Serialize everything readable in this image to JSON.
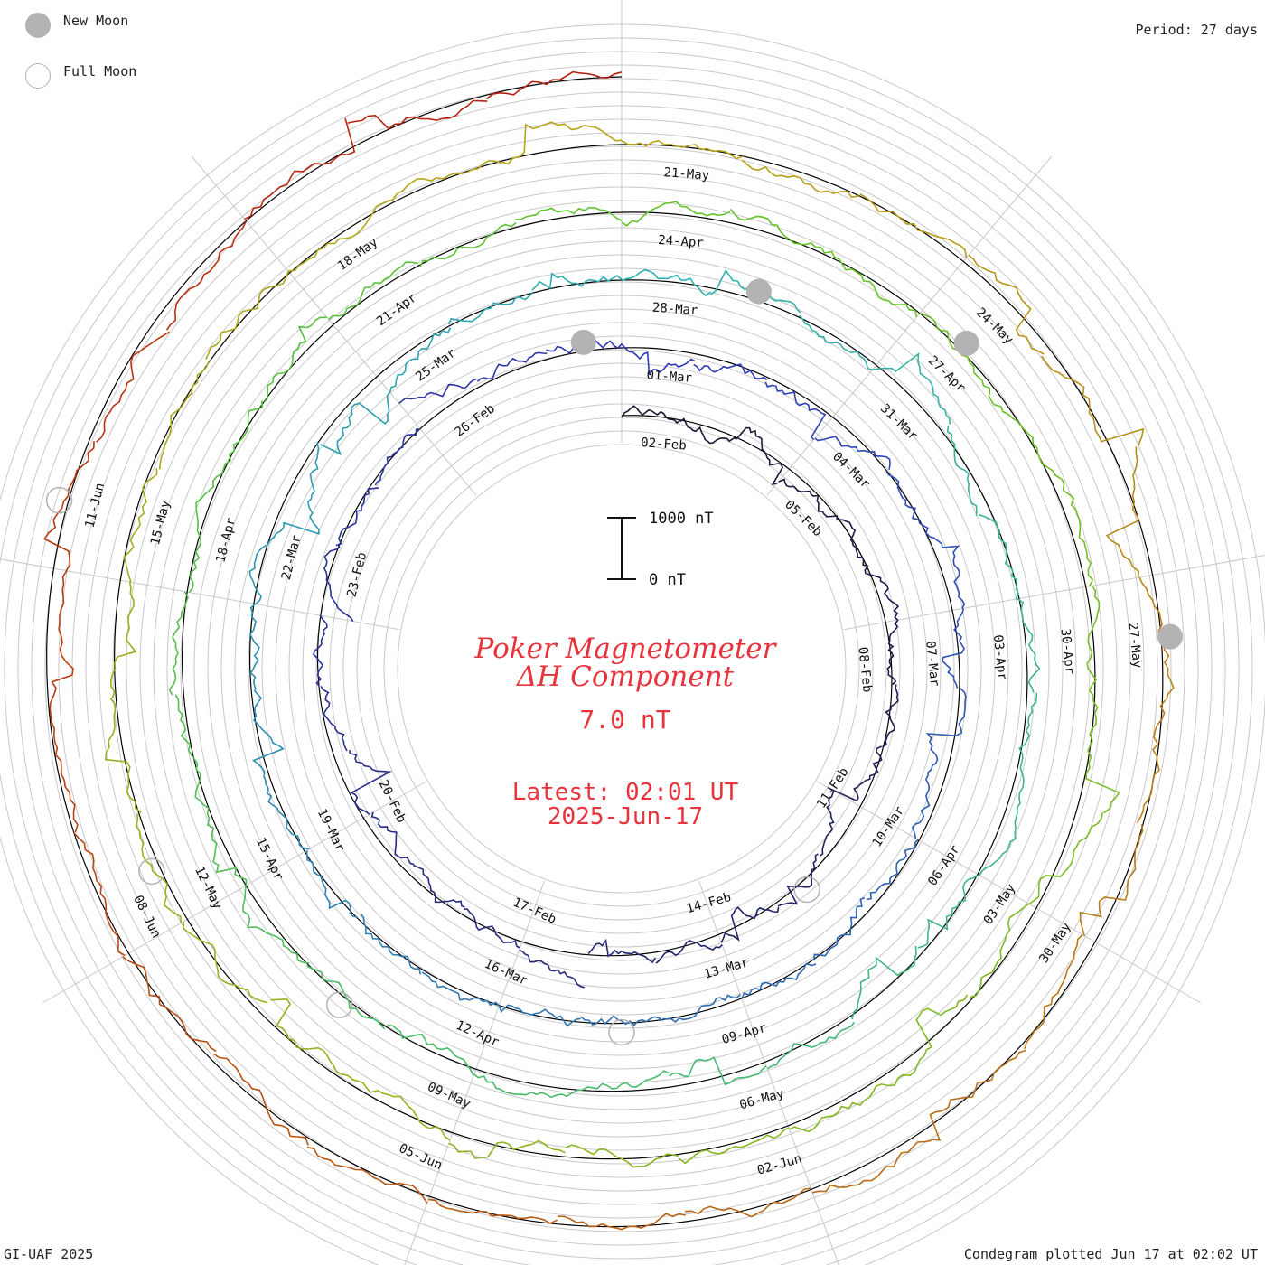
{
  "legend": {
    "new_moon_label": "New Moon",
    "full_moon_label": "Full Moon",
    "new_moon_color": "#b3b3b3",
    "full_moon_color": "#b3b3b3"
  },
  "period_label": "Period: 27 days",
  "footer": {
    "left": "GI-UAF 2025",
    "right": "Condegram plotted Jun 17 at 02:02 UT"
  },
  "center": {
    "title_line1": "Poker Magnetometer",
    "title_line2": "ΔH Component",
    "value": "7.0 nT",
    "latest_line1": "Latest: 02:01 UT",
    "latest_line2": "2025-Jun-17",
    "text_color": "#e8323c"
  },
  "scale_bar": {
    "top_label": "1000 nT",
    "bottom_label": "0 nT"
  },
  "chart_data": {
    "type": "line",
    "title": "Poker Magnetometer ΔH Component",
    "period_days": 27,
    "start_date": "2025-02-02",
    "end_date": "2025-06-17",
    "scale_nt": [
      0,
      1000
    ],
    "latest_value_nt": 7.0,
    "rotations": [
      {
        "start": "02-Feb",
        "color": "#181830"
      },
      {
        "start": "01-Mar",
        "color": "#2f38b5"
      },
      {
        "start": "28-Mar",
        "color": "#2fb0b0"
      },
      {
        "start": "24-Apr",
        "color": "#62c42a"
      },
      {
        "start": "21-May",
        "color": "#b8a418"
      },
      {
        "start": "17-Jun",
        "color": "#b81a10"
      }
    ],
    "ring_date_labels": [
      [
        "02-Feb",
        "05-Feb",
        "08-Feb",
        "11-Feb",
        "14-Feb",
        "17-Feb",
        "20-Feb",
        "23-Feb",
        "26-Feb"
      ],
      [
        "01-Mar",
        "04-Mar",
        "07-Mar",
        "10-Mar",
        "13-Mar",
        "16-Mar",
        "19-Mar",
        "22-Mar",
        "25-Mar"
      ],
      [
        "28-Mar",
        "31-Mar",
        "03-Apr",
        "06-Apr",
        "09-Apr",
        "12-Apr",
        "15-Apr",
        "18-Apr",
        "21-Apr"
      ],
      [
        "24-Apr",
        "27-Apr",
        "30-Apr",
        "03-May",
        "06-May",
        "09-May",
        "12-May",
        "15-May",
        "18-May"
      ],
      [
        "21-May",
        "24-May",
        "27-May",
        "30-May",
        "02-Jun",
        "05-Jun",
        "08-Jun",
        "11-Jun",
        ""
      ]
    ],
    "new_moons": [
      "2025-02-28",
      "2025-03-29",
      "2025-04-27",
      "2025-05-27"
    ],
    "full_moons": [
      "2025-02-12",
      "2025-03-14",
      "2025-04-13",
      "2025-05-12",
      "2025-06-11"
    ]
  }
}
